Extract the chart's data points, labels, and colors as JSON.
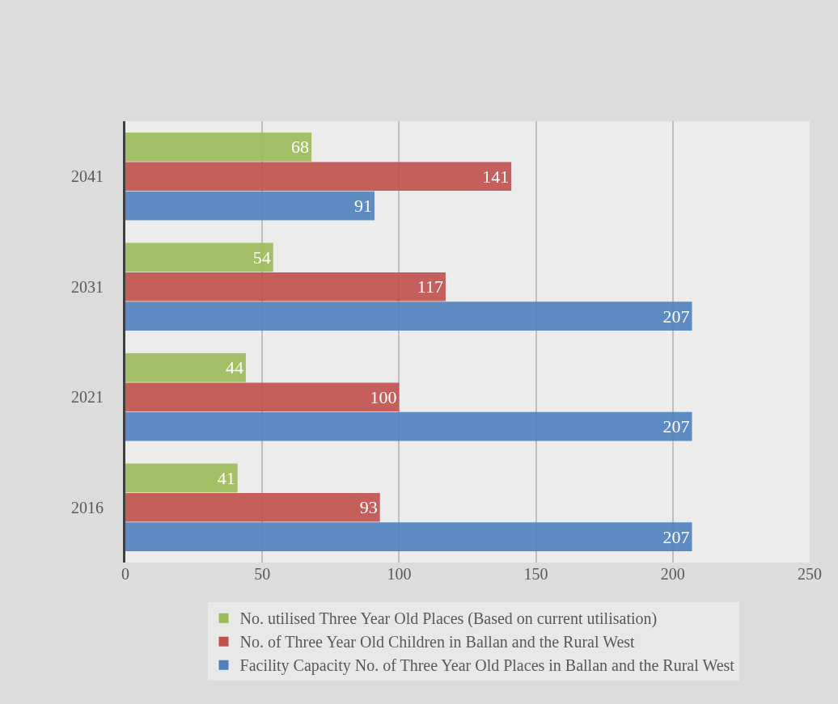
{
  "chart_data": {
    "type": "bar",
    "orientation": "horizontal",
    "categories": [
      "2041",
      "2031",
      "2021",
      "2016"
    ],
    "series": [
      {
        "name": "No. utilised Three Year Old Places (Based on current utilisation)",
        "color": "#9bbb59",
        "values": [
          68,
          54,
          44,
          41
        ]
      },
      {
        "name": "No. of Three Year Old Children in Ballan and the Rural West",
        "color": "#c0504d",
        "values": [
          141,
          117,
          100,
          93
        ]
      },
      {
        "name": "Facility Capacity No. of Three Year Old Places in Ballan and the Rural West",
        "color": "#4f81bd",
        "values": [
          91,
          207,
          207,
          207
        ]
      }
    ],
    "xlim": [
      0,
      250
    ],
    "xticks": [
      0,
      50,
      100,
      150,
      200,
      250
    ],
    "grid": "x",
    "legend": "bottom",
    "data_labels": true
  }
}
